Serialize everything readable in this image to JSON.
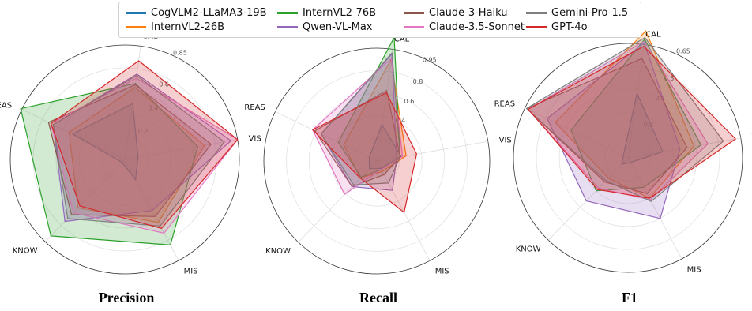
{
  "legend": {
    "items": [
      {
        "name": "CogVLM2-LLaMA3-19B",
        "color": "#1f77b4"
      },
      {
        "name": "InternVL2-26B",
        "color": "#ff7f0e"
      },
      {
        "name": "InternVL2-76B",
        "color": "#2ca02c"
      },
      {
        "name": "Qwen-VL-Max",
        "color": "#9467bd"
      },
      {
        "name": "Claude-3-Haiku",
        "color": "#8c564b"
      },
      {
        "name": "Claude-3.5-Sonnet",
        "color": "#e377c2"
      },
      {
        "name": "Gemini-Pro-1.5",
        "color": "#7f7f7f"
      },
      {
        "name": "GPT-4o",
        "color": "#d62728"
      }
    ]
  },
  "chart_data": [
    {
      "type": "radar",
      "title": "Precision",
      "axes": [
        "VIS",
        "CAL",
        "REAS",
        "KNOW",
        "MIS"
      ],
      "rmax": 0.85,
      "tick_labels": [
        "0.2",
        "0.4",
        "0.6",
        "0.85"
      ],
      "series": [
        {
          "name": "CogVLM2-LLaMA3-19B",
          "values": [
            0.1,
            0.42,
            0.43,
            0.03,
            0.17
          ]
        },
        {
          "name": "InternVL2-26B",
          "values": [
            0.6,
            0.54,
            0.46,
            0.5,
            0.53
          ]
        },
        {
          "name": "InternVL2-76B",
          "values": [
            0.55,
            0.57,
            0.86,
            0.79,
            0.72
          ]
        },
        {
          "name": "Qwen-VL-Max",
          "values": [
            0.8,
            0.64,
            0.59,
            0.64,
            0.43
          ]
        },
        {
          "name": "Claude-3-Haiku",
          "values": [
            0.65,
            0.56,
            0.63,
            0.57,
            0.48
          ]
        },
        {
          "name": "Claude-3.5-Sonnet",
          "values": [
            0.85,
            0.61,
            0.61,
            0.55,
            0.62
          ]
        },
        {
          "name": "Gemini-Pro-1.5",
          "values": [
            0.75,
            0.63,
            0.59,
            0.61,
            0.56
          ]
        },
        {
          "name": "GPT-4o",
          "values": [
            0.85,
            0.74,
            0.61,
            0.48,
            0.58
          ]
        }
      ]
    },
    {
      "type": "radar",
      "title": "Recall",
      "axes": [
        "VIS",
        "CAL",
        "REAS",
        "KNOW",
        "MIS"
      ],
      "rmax": 0.95,
      "tick_labels": [
        "0.4",
        "0.6",
        "0.8",
        "0.95"
      ],
      "series": [
        {
          "name": "CogVLM2-LLaMA3-19B",
          "values": [
            0.21,
            0.31,
            0.07,
            0.09,
            0.07
          ]
        },
        {
          "name": "InternVL2-26B",
          "values": [
            0.25,
            0.86,
            0.31,
            0.2,
            0.1
          ]
        },
        {
          "name": "InternVL2-76B",
          "values": [
            0.2,
            1.05,
            0.36,
            0.19,
            0.08
          ]
        },
        {
          "name": "Qwen-VL-Max",
          "values": [
            0.17,
            0.91,
            0.52,
            0.3,
            0.28
          ]
        },
        {
          "name": "Claude-3-Haiku",
          "values": [
            0.2,
            0.6,
            0.58,
            0.3,
            0.13
          ]
        },
        {
          "name": "Claude-3.5-Sonnet",
          "values": [
            0.22,
            0.87,
            0.6,
            0.39,
            0.08
          ]
        },
        {
          "name": "Gemini-Pro-1.5",
          "values": [
            0.2,
            0.92,
            0.52,
            0.28,
            0.21
          ]
        },
        {
          "name": "GPT-4o",
          "values": [
            0.34,
            0.58,
            0.6,
            0.2,
            0.49
          ]
        }
      ]
    },
    {
      "type": "radar",
      "title": "F1",
      "axes": [
        "VIS",
        "CAL",
        "REAS",
        "KNOW",
        "MIS"
      ],
      "rmax": 0.65,
      "tick_labels": [
        "0.2",
        "0.4",
        "0.5",
        "0.65"
      ],
      "series": [
        {
          "name": "CogVLM2-LLaMA3-19B",
          "values": [
            0.2,
            0.37,
            0.03,
            0.05,
            0.03
          ]
        },
        {
          "name": "InternVL2-26B",
          "values": [
            0.38,
            0.73,
            0.46,
            0.16,
            0.26
          ]
        },
        {
          "name": "InternVL2-76B",
          "values": [
            0.42,
            0.68,
            0.36,
            0.26,
            0.19
          ]
        },
        {
          "name": "Qwen-VL-Max",
          "values": [
            0.3,
            0.66,
            0.51,
            0.34,
            0.39
          ]
        },
        {
          "name": "Claude-3-Haiku",
          "values": [
            0.34,
            0.57,
            0.64,
            0.19,
            0.23
          ]
        },
        {
          "name": "Claude-3.5-Sonnet",
          "values": [
            0.46,
            0.67,
            0.63,
            0.24,
            0.27
          ]
        },
        {
          "name": "Gemini-Pro-1.5",
          "values": [
            0.55,
            0.69,
            0.64,
            0.18,
            0.28
          ]
        },
        {
          "name": "GPT-4o",
          "values": [
            0.62,
            0.64,
            0.63,
            0.25,
            0.26
          ]
        }
      ]
    }
  ]
}
